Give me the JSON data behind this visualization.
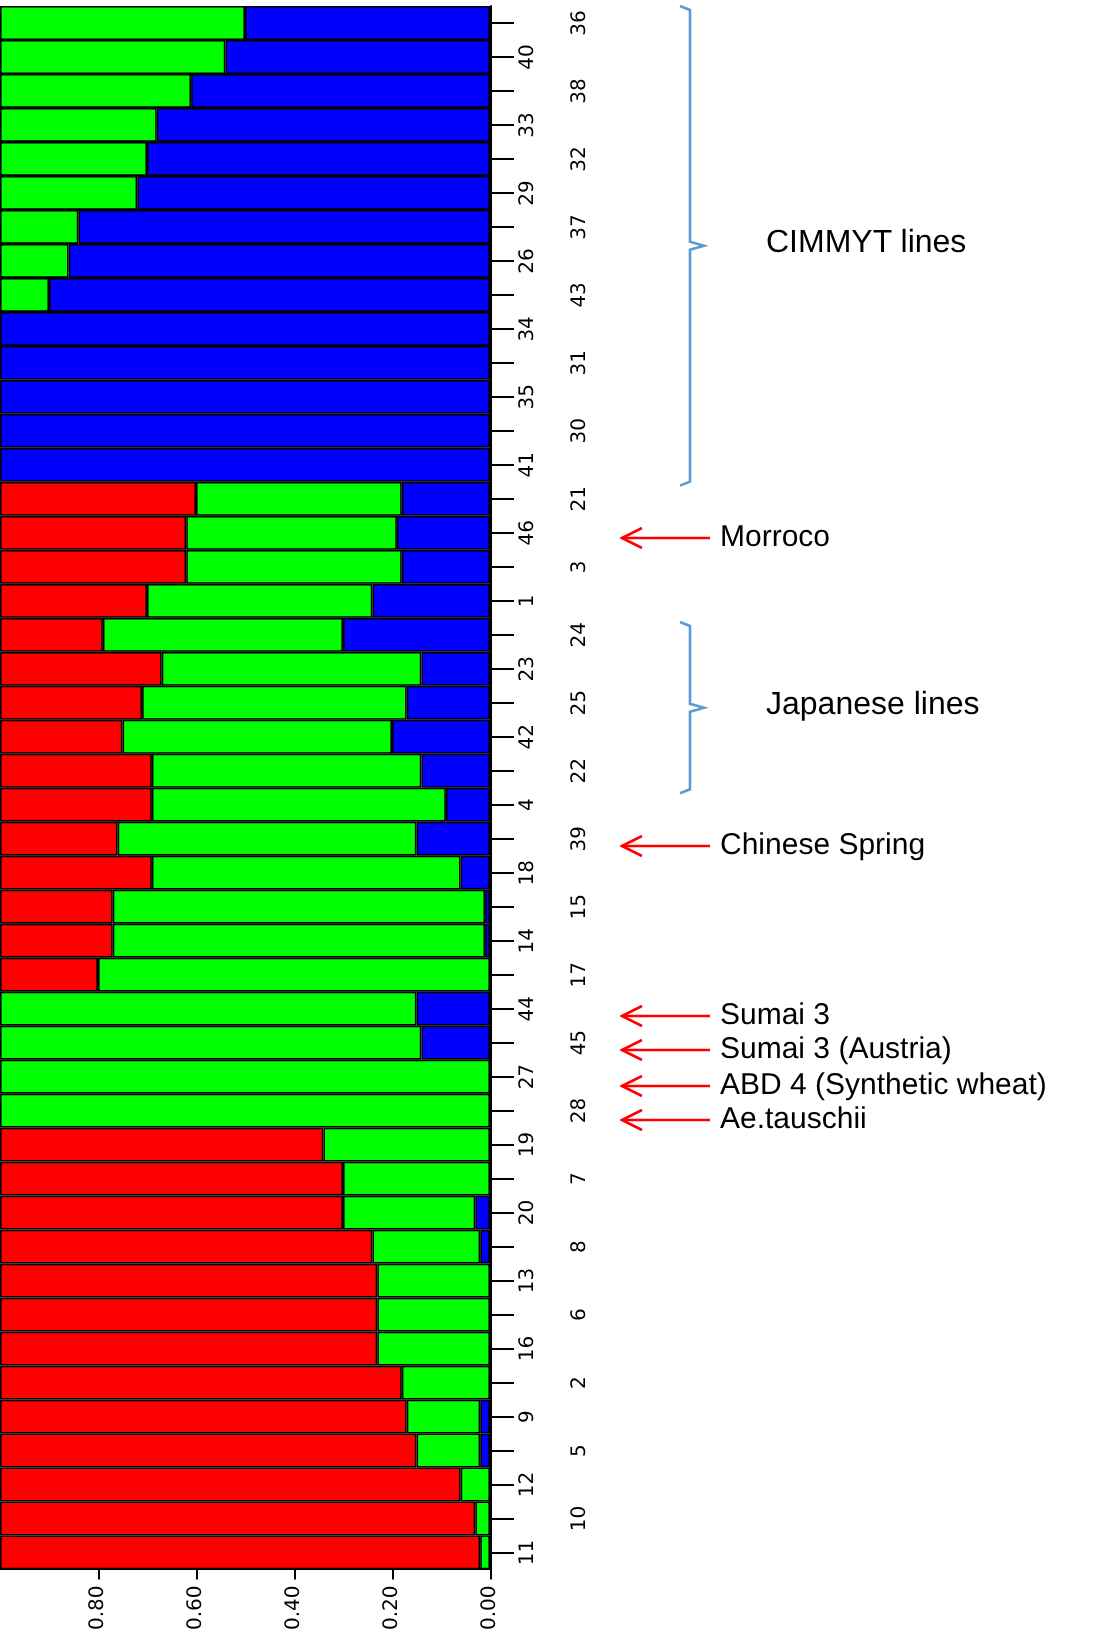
{
  "chart_data": {
    "type": "bar",
    "orientation": "horizontal",
    "stacked": true,
    "categories": [
      "36",
      "40",
      "38",
      "33",
      "32",
      "29",
      "37",
      "26",
      "43",
      "34",
      "31",
      "35",
      "30",
      "41",
      "21",
      "46",
      "3",
      "1",
      "24",
      "23",
      "25",
      "42",
      "22",
      "4",
      "39",
      "18",
      "15",
      "14",
      "17",
      "44",
      "45",
      "27",
      "28",
      "19",
      "7",
      "20",
      "8",
      "13",
      "6",
      "16",
      "2",
      "9",
      "5",
      "12",
      "10",
      "11"
    ],
    "series": [
      {
        "color": "#0000ff",
        "values": [
          0.5,
          0.54,
          0.61,
          0.68,
          0.7,
          0.72,
          0.84,
          0.86,
          0.9,
          1,
          1,
          1,
          1,
          1,
          0.18,
          0.19,
          0.18,
          0.24,
          0.3,
          0.14,
          0.17,
          0.2,
          0.14,
          0.09,
          0.15,
          0.06,
          0.01,
          0.01,
          null,
          0.15,
          0.14,
          null,
          null,
          null,
          null,
          0.03,
          0.02,
          null,
          null,
          null,
          null,
          0.02,
          0.02,
          null,
          null,
          null
        ]
      },
      {
        "color": "#00ff00",
        "values": [
          0.5,
          0.46,
          0.39,
          0.32,
          0.3,
          0.28,
          0.16,
          0.14,
          0.1,
          null,
          null,
          null,
          null,
          null,
          0.42,
          0.43,
          0.44,
          0.46,
          0.49,
          0.53,
          0.54,
          0.55,
          0.55,
          0.6,
          0.61,
          0.63,
          0.76,
          0.76,
          0.8,
          0.85,
          0.86,
          1,
          1,
          0.34,
          0.3,
          0.27,
          0.22,
          0.23,
          0.23,
          0.23,
          0.18,
          0.15,
          0.13,
          0.06,
          0.03,
          0.02
        ]
      },
      {
        "color": "#ff0000",
        "values": [
          null,
          null,
          null,
          null,
          null,
          null,
          null,
          null,
          null,
          null,
          null,
          null,
          null,
          null,
          0.4,
          0.38,
          0.38,
          0.3,
          0.21,
          0.33,
          0.29,
          0.25,
          0.31,
          0.31,
          0.24,
          0.31,
          0.23,
          0.23,
          0.2,
          null,
          null,
          null,
          null,
          0.66,
          0.7,
          0.7,
          0.76,
          0.77,
          0.77,
          0.77,
          0.82,
          0.83,
          0.85,
          0.94,
          0.97,
          0.98
        ]
      }
    ],
    "xlim": [
      1,
      0
    ],
    "xticks": [
      {
        "value": 0.8,
        "label": "0.80"
      },
      {
        "value": 0.6,
        "label": "0.60"
      },
      {
        "value": 0.4,
        "label": "0.40"
      },
      {
        "value": 0.2,
        "label": "0.20"
      },
      {
        "value": 0,
        "label": "0.00"
      }
    ],
    "grid": false,
    "annotations": [
      "CIMMYT lines",
      "Morroco",
      "Japanese lines",
      "Chinese Spring",
      "Sumai 3",
      "Sumai 3 (Austria)",
      "ABD 4 (Synthetic wheat)",
      "Ae.tauschii"
    ]
  }
}
